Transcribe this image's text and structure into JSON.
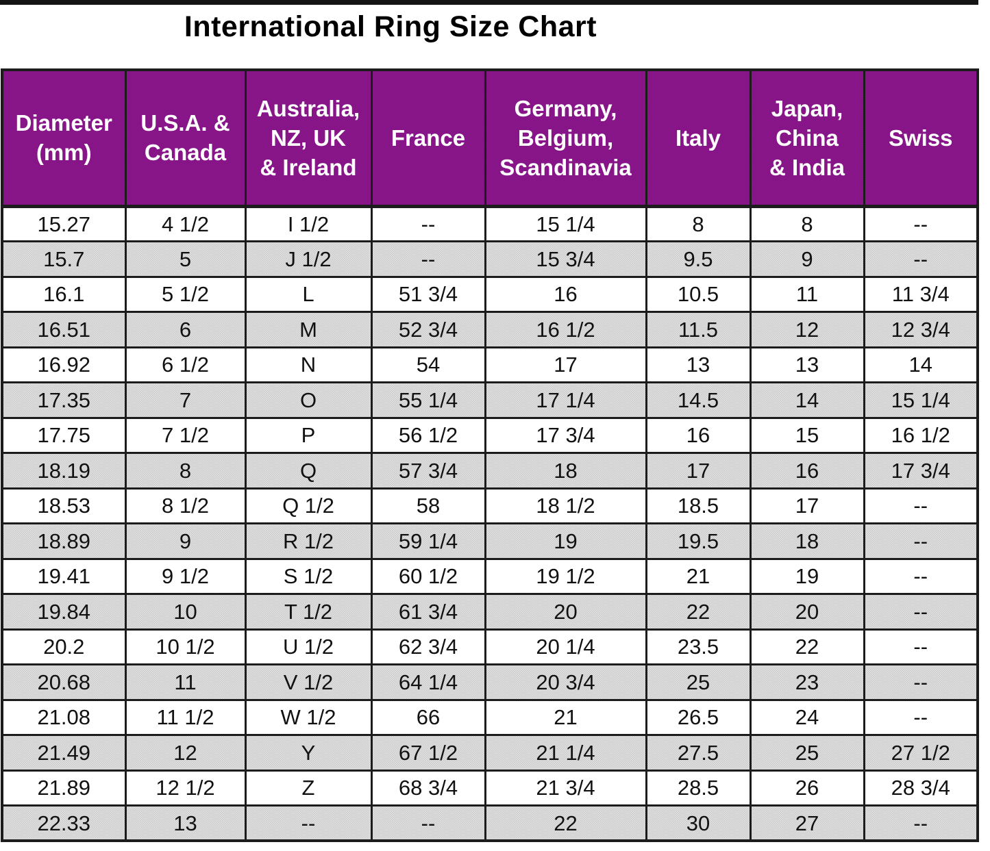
{
  "chart_data": {
    "type": "table",
    "title": "International Ring Size Chart",
    "columns": [
      {
        "id": "diameter-mm",
        "lines": [
          "Diameter",
          "(mm)"
        ]
      },
      {
        "id": "usa-canada",
        "lines": [
          "U.S.A. &",
          "Canada"
        ]
      },
      {
        "id": "australia-nz-uk-ireland",
        "lines": [
          "Australia,",
          "NZ, UK",
          "& Ireland"
        ]
      },
      {
        "id": "france",
        "lines": [
          "France"
        ]
      },
      {
        "id": "germany-belgium-scandinavia",
        "lines": [
          "Germany,",
          "Belgium,",
          "Scandinavia"
        ]
      },
      {
        "id": "italy",
        "lines": [
          "Italy"
        ]
      },
      {
        "id": "japan-china-india",
        "lines": [
          "Japan,",
          "China",
          "& India"
        ]
      },
      {
        "id": "swiss",
        "lines": [
          "Swiss"
        ]
      }
    ],
    "rows": [
      [
        "15.27",
        "4 1/2",
        "I 1/2",
        "--",
        "15 1/4",
        "8",
        "8",
        "--"
      ],
      [
        "15.7",
        "5",
        "J 1/2",
        "--",
        "15 3/4",
        "9.5",
        "9",
        "--"
      ],
      [
        "16.1",
        "5 1/2",
        "L",
        "51 3/4",
        "16",
        "10.5",
        "11",
        "11 3/4"
      ],
      [
        "16.51",
        "6",
        "M",
        "52 3/4",
        "16 1/2",
        "11.5",
        "12",
        "12 3/4"
      ],
      [
        "16.92",
        "6 1/2",
        "N",
        "54",
        "17",
        "13",
        "13",
        "14"
      ],
      [
        "17.35",
        "7",
        "O",
        "55 1/4",
        "17 1/4",
        "14.5",
        "14",
        "15 1/4"
      ],
      [
        "17.75",
        "7 1/2",
        "P",
        "56 1/2",
        "17 3/4",
        "16",
        "15",
        "16 1/2"
      ],
      [
        "18.19",
        "8",
        "Q",
        "57 3/4",
        "18",
        "17",
        "16",
        "17 3/4"
      ],
      [
        "18.53",
        "8 1/2",
        "Q 1/2",
        "58",
        "18 1/2",
        "18.5",
        "17",
        "--"
      ],
      [
        "18.89",
        "9",
        "R 1/2",
        "59 1/4",
        "19",
        "19.5",
        "18",
        "--"
      ],
      [
        "19.41",
        "9 1/2",
        "S 1/2",
        "60 1/2",
        "19 1/2",
        "21",
        "19",
        "--"
      ],
      [
        "19.84",
        "10",
        "T 1/2",
        "61 3/4",
        "20",
        "22",
        "20",
        "--"
      ],
      [
        "20.2",
        "10 1/2",
        "U 1/2",
        "62 3/4",
        "20 1/4",
        "23.5",
        "22",
        "--"
      ],
      [
        "20.68",
        "11",
        "V 1/2",
        "64 1/4",
        "20 3/4",
        "25",
        "23",
        "--"
      ],
      [
        "21.08",
        "11 1/2",
        "W 1/2",
        "66",
        "21",
        "26.5",
        "24",
        "--"
      ],
      [
        "21.49",
        "12",
        "Y",
        "67 1/2",
        "21 1/4",
        "27.5",
        "25",
        "27 1/2"
      ],
      [
        "21.89",
        "12 1/2",
        "Z",
        "68 3/4",
        "21 3/4",
        "28.5",
        "26",
        "28 3/4"
      ],
      [
        "22.33",
        "13",
        "--",
        "--",
        "22",
        "30",
        "27",
        "--"
      ]
    ],
    "layout": {
      "striped": true,
      "header_bg": "#8E1690",
      "header_text": "#FFFFFF",
      "alt_row_bg": "#CBCBCB",
      "row_bg": "#FFFFFF",
      "border_color": "#1C1C1C",
      "title_color": "#000000"
    }
  }
}
